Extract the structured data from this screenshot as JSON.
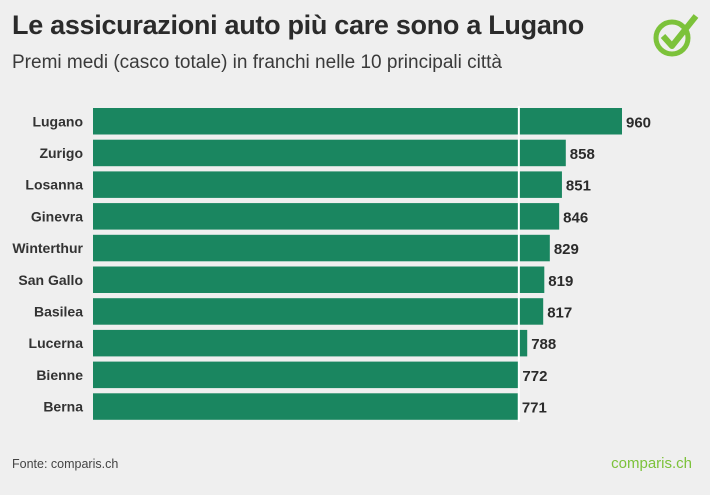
{
  "header": {
    "title": "Le assicurazioni auto più care sono a Lugano",
    "subtitle": "Premi medi (casco totale) in franchi nelle 10 principali città"
  },
  "footer": {
    "source": "Fonte: comparis.ch",
    "brand": "comparis.ch"
  },
  "colors": {
    "bar": "#1a8660",
    "brand": "#7cc23a",
    "background": "#efefef"
  },
  "chart_data": {
    "type": "bar",
    "orientation": "horizontal",
    "categories": [
      "Lugano",
      "Zurigo",
      "Losanna",
      "Ginevra",
      "Winterthur",
      "San Gallo",
      "Basilea",
      "Lucerna",
      "Bienne",
      "Berna"
    ],
    "values": [
      960,
      858,
      851,
      846,
      829,
      819,
      817,
      788,
      772,
      771
    ],
    "xlim": [
      0,
      960
    ],
    "reference_line": 771,
    "grid": false,
    "title": "Le assicurazioni auto più care sono a Lugano"
  }
}
